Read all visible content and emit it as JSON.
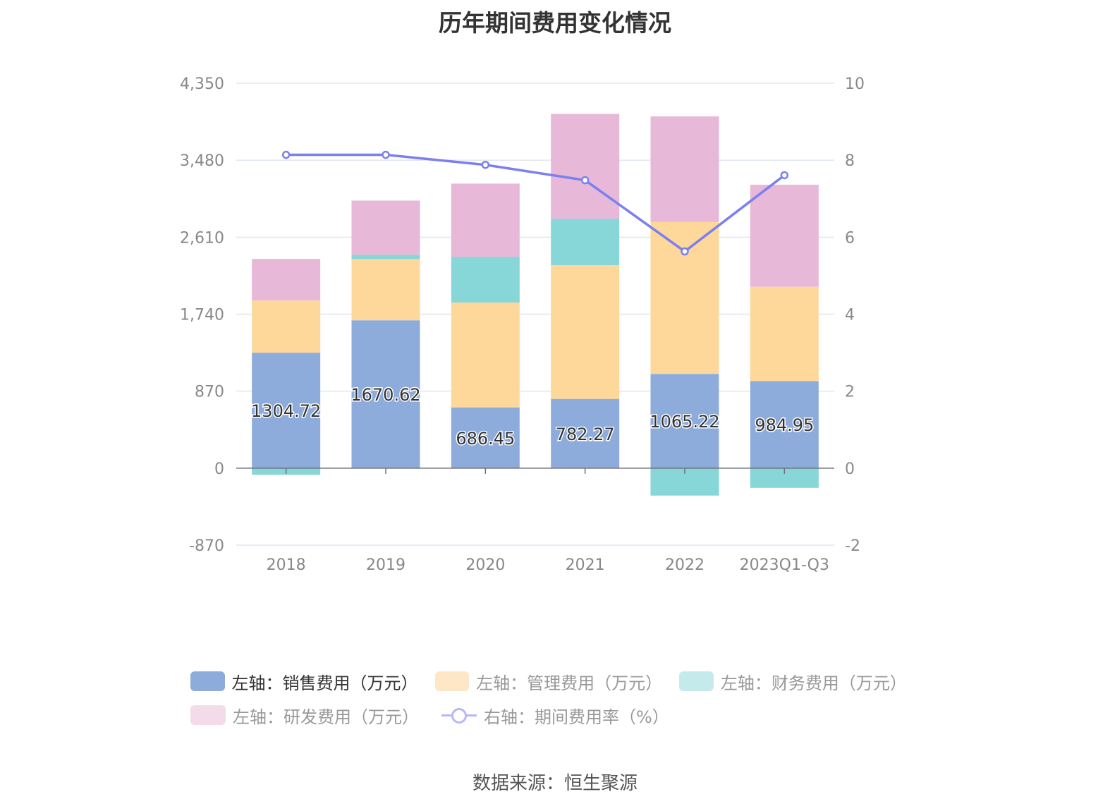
{
  "chart_data": {
    "type": "bar",
    "title": "历年期间费用变化情况",
    "categories": [
      "2018",
      "2019",
      "2020",
      "2021",
      "2022",
      "2023Q1-Q3"
    ],
    "left_axis": {
      "ticks": [
        "4,350",
        "3,480",
        "2,610",
        "1,740",
        "870",
        "0",
        "-870"
      ],
      "tick_values": [
        4350,
        3480,
        2610,
        1740,
        870,
        0,
        -870
      ],
      "ylim": [
        -870,
        4350
      ]
    },
    "right_axis": {
      "ticks": [
        "10",
        "8",
        "6",
        "4",
        "2",
        "0",
        "-2"
      ],
      "tick_values": [
        10,
        8,
        6,
        4,
        2,
        0,
        -2
      ],
      "ylim": [
        -2,
        10
      ]
    },
    "series": [
      {
        "name": "左轴：销售费用（万元）",
        "type": "bar",
        "axis": "left",
        "color": "#8eacdb",
        "values": [
          1304.72,
          1670.62,
          686.45,
          782.27,
          1065.22,
          984.95
        ],
        "labels": [
          "1304.72",
          "1670.62",
          "686.45",
          "782.27",
          "1065.22",
          "984.95"
        ]
      },
      {
        "name": "左轴：管理费用（万元）",
        "type": "bar",
        "axis": "left",
        "color": "#fed89b",
        "values": [
          590,
          692,
          1185,
          1511,
          1717,
          1065
        ]
      },
      {
        "name": "左轴：财务费用（万元）",
        "type": "bar",
        "axis": "left",
        "color": "#87d6d8",
        "values": [
          -75,
          48,
          517,
          525,
          -310,
          -223
        ]
      },
      {
        "name": "左轴：研发费用（万元）",
        "type": "bar",
        "axis": "left",
        "color": "#e7b8d8",
        "values": [
          470,
          613,
          827,
          1185,
          1193,
          1153
        ]
      },
      {
        "name": "右轴：期间费用率（%）",
        "type": "line",
        "axis": "right",
        "color": "#7b7ff0",
        "values": [
          8.14,
          8.14,
          7.88,
          7.48,
          5.63,
          7.61
        ]
      }
    ],
    "legend_position": "bottom",
    "grid": true
  },
  "legend": {
    "items": [
      {
        "label": "左轴：销售费用（万元）",
        "color": "#8eacdb"
      },
      {
        "label": "左轴：管理费用（万元）",
        "color": "#fde7c6"
      },
      {
        "label": "左轴：财务费用（万元）",
        "color": "#c4eaeb"
      },
      {
        "label": "左轴：研发费用（万元）",
        "color": "#f3dbea"
      },
      {
        "label": "右轴：期间费用率（%）",
        "color": "#b8b7fa"
      }
    ]
  },
  "source": "数据来源：恒生聚源"
}
